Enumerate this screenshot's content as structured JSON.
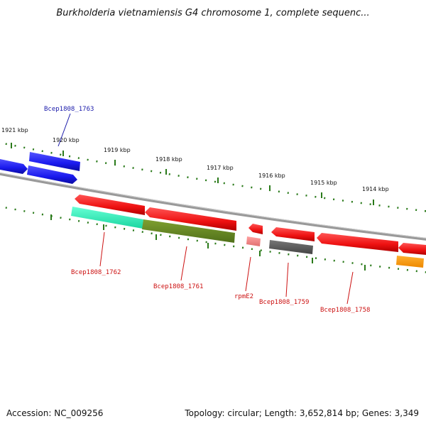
{
  "title": "Burkholderia vietnamiensis G4 chromosome 1, complete sequenc...",
  "footer": {
    "accession": "Accession: NC_009256",
    "summary": "Topology: circular; Length: 3,652,814 bp; Genes: 3,349"
  },
  "kbp_ticks": [
    "1921 kbp",
    "1920 kbp",
    "1919 kbp",
    "1918 kbp",
    "1917 kbp",
    "1916 kbp",
    "1915 kbp",
    "1914 kbp"
  ],
  "gene_labels": {
    "g1763": "Bcep1808_1763",
    "g1762": "Bcep1808_1762",
    "g1761": "Bcep1808_1761",
    "rpmE2": "rpmE2",
    "g1759": "Bcep1808_1759",
    "g1758": "Bcep1808_1758"
  },
  "colors": {
    "backbone": "#888888",
    "tick": "#2a7a1a",
    "cds": "#ee1111",
    "blue": "#1a1aee",
    "teal": "#22eebb",
    "olive": "#6b8a22",
    "pink": "#f08080",
    "gray": "#666666",
    "orange": "#ff9900",
    "label_blue": "#1a1aaa",
    "label_red": "#cc1111"
  }
}
